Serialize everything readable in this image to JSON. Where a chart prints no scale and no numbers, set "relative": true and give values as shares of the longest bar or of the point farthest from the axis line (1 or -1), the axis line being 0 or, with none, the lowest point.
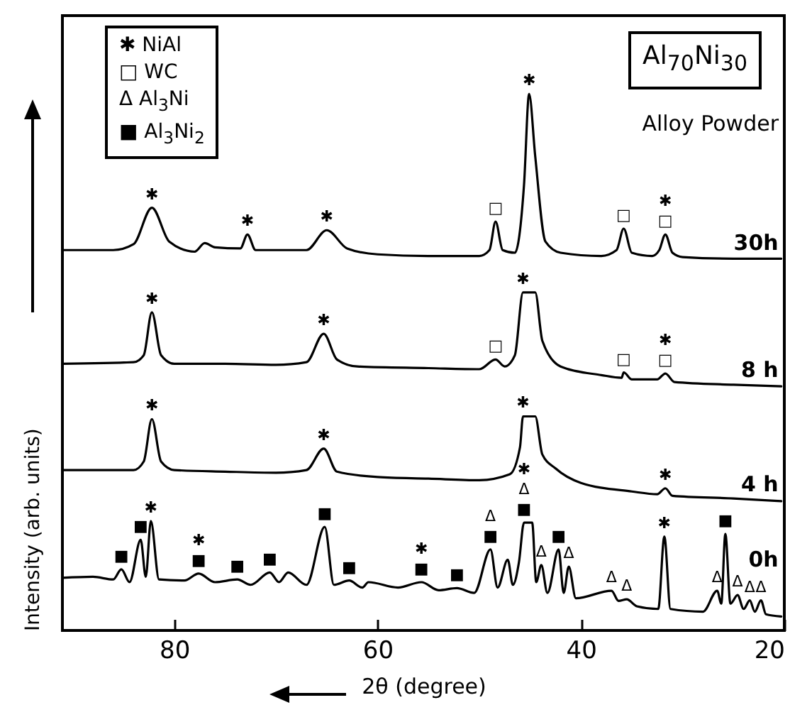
{
  "chart_data": {
    "type": "line",
    "relative": true,
    "xlabel": "2θ (degree)",
    "ylabel": "Intensity (arb. units)",
    "xlim": [
      91,
      20
    ],
    "xticks": [
      80,
      60,
      40,
      20
    ],
    "grid": false,
    "legend": false,
    "line_style": "solid",
    "series": [
      {
        "name": "30h",
        "color": "#000000",
        "x": [
          91,
          86,
          84,
          82.2,
          80.5,
          78,
          77,
          76,
          73.5,
          72.8,
          72,
          67,
          65,
          63,
          60,
          55,
          50,
          49,
          48.4,
          47.7,
          46.5,
          45.6,
          45.1,
          44.5,
          43.5,
          42,
          38,
          36.5,
          35.8,
          35,
          33,
          32.3,
          31.7,
          31,
          30,
          25,
          20.3
        ],
        "values": [
          0.709,
          0.709,
          0.72,
          0.788,
          0.725,
          0.706,
          0.722,
          0.714,
          0.712,
          0.738,
          0.709,
          0.709,
          0.746,
          0.712,
          0.701,
          0.698,
          0.698,
          0.709,
          0.762,
          0.709,
          0.704,
          0.831,
          1.0,
          0.884,
          0.725,
          0.704,
          0.698,
          0.709,
          0.749,
          0.704,
          0.698,
          0.709,
          0.738,
          0.704,
          0.696,
          0.693,
          0.693
        ]
      },
      {
        "name": "8 h",
        "color": "#000000",
        "x": [
          91,
          84,
          83,
          82.2,
          81.3,
          80,
          75,
          70,
          67,
          65.3,
          64,
          62,
          55,
          50,
          48.4,
          47.5,
          46.5,
          45.7,
          44.5,
          43.8,
          42,
          38,
          36,
          35.8,
          35,
          32.5,
          31.7,
          30.8,
          25,
          20.3
        ],
        "values": [
          0.497,
          0.5,
          0.513,
          0.593,
          0.513,
          0.497,
          0.497,
          0.495,
          0.5,
          0.553,
          0.505,
          0.492,
          0.489,
          0.487,
          0.505,
          0.492,
          0.513,
          0.63,
          0.63,
          0.54,
          0.492,
          0.476,
          0.471,
          0.481,
          0.468,
          0.468,
          0.479,
          0.463,
          0.458,
          0.455
        ]
      },
      {
        "name": "4 h",
        "color": "#000000",
        "x": [
          91,
          84,
          83,
          82.2,
          81.3,
          80,
          75,
          70,
          67,
          65.3,
          64,
          60,
          55,
          50,
          47,
          46,
          45.7,
          44.5,
          43.8,
          42.5,
          40,
          35,
          32.5,
          31.7,
          31,
          25,
          20.3
        ],
        "values": [
          0.299,
          0.299,
          0.315,
          0.394,
          0.315,
          0.299,
          0.296,
          0.294,
          0.299,
          0.339,
          0.296,
          0.286,
          0.283,
          0.28,
          0.291,
          0.341,
          0.399,
          0.399,
          0.328,
          0.302,
          0.275,
          0.259,
          0.254,
          0.265,
          0.251,
          0.246,
          0.241
        ]
      },
      {
        "name": "0h",
        "color": "#000000",
        "x": [
          91,
          88,
          86,
          85.2,
          84.4,
          83.3,
          82.8,
          82.3,
          81.5,
          79,
          77.6,
          76,
          73.8,
          72.5,
          70.6,
          69.7,
          68.8,
          67,
          65.2,
          64.3,
          62.8,
          61.5,
          60.9,
          58,
          55.7,
          54,
          52.2,
          50.5,
          48.9,
          48.2,
          47.2,
          46.7,
          46.1,
          45.6,
          44.8,
          44.4,
          43.9,
          43.3,
          42.2,
          41.7,
          41.2,
          40.5,
          37,
          36.3,
          35.5,
          34.5,
          32.4,
          31.8,
          31.2,
          28,
          26.6,
          26.2,
          25.8,
          25.3,
          24.6,
          24,
          23.4,
          22.9,
          22.3,
          21.8,
          20.3
        ],
        "values": [
          0.098,
          0.1,
          0.095,
          0.114,
          0.09,
          0.169,
          0.1,
          0.204,
          0.095,
          0.093,
          0.106,
          0.09,
          0.095,
          0.085,
          0.108,
          0.09,
          0.108,
          0.085,
          0.193,
          0.085,
          0.093,
          0.08,
          0.09,
          0.08,
          0.09,
          0.075,
          0.079,
          0.07,
          0.151,
          0.08,
          0.132,
          0.085,
          0.127,
          0.201,
          0.201,
          0.09,
          0.122,
          0.07,
          0.151,
          0.07,
          0.119,
          0.06,
          0.074,
          0.055,
          0.058,
          0.045,
          0.04,
          0.175,
          0.04,
          0.035,
          0.074,
          0.05,
          0.18,
          0.05,
          0.066,
          0.04,
          0.056,
          0.035,
          0.056,
          0.03,
          0.026
        ]
      }
    ],
    "annotations": [
      "Al$_{70}$Ni$_{30}$",
      "Alloy Powder",
      "✱ NiAl",
      "□ WC",
      "Δ Al$_{3}$Ni",
      "■ Al$_{3}$Ni$_{2}$",
      {
        "text": "✱",
        "x": 82.2,
        "y": 0.788
      },
      {
        "text": "✱",
        "x": 72.8,
        "y": 0.738
      },
      {
        "text": "✱",
        "x": 65,
        "y": 0.746
      },
      {
        "text": "□",
        "x": 48.4,
        "y": 0.762
      },
      {
        "text": "✱",
        "x": 45.1,
        "y": 1.0
      },
      {
        "text": "□",
        "x": 35.8,
        "y": 0.749
      },
      {
        "text": "□",
        "x": 31.7,
        "y": 0.738
      },
      {
        "text": "✱",
        "x": 31.7,
        "y": 0.738
      },
      {
        "text": "✱",
        "x": 82.2,
        "y": 0.593
      },
      {
        "text": "✱",
        "x": 65.3,
        "y": 0.553
      },
      {
        "text": "□",
        "x": 48.4,
        "y": 0.505
      },
      {
        "text": "✱",
        "x": 45.7,
        "y": 0.63
      },
      {
        "text": "□",
        "x": 35.8,
        "y": 0.481
      },
      {
        "text": "□",
        "x": 31.7,
        "y": 0.479
      },
      {
        "text": "✱",
        "x": 31.7,
        "y": 0.479
      },
      {
        "text": "✱",
        "x": 82.2,
        "y": 0.394
      },
      {
        "text": "✱",
        "x": 65.3,
        "y": 0.339
      },
      {
        "text": "✱",
        "x": 45.7,
        "y": 0.399
      },
      {
        "text": "✱",
        "x": 31.7,
        "y": 0.265
      },
      {
        "text": "■",
        "x": 85.2,
        "y": 0.114
      },
      {
        "text": "■",
        "x": 83.3,
        "y": 0.169
      },
      {
        "text": "✱",
        "x": 82.3,
        "y": 0.204
      },
      {
        "text": "■",
        "x": 77.6,
        "y": 0.106
      },
      {
        "text": "✱",
        "x": 77.6,
        "y": 0.106
      },
      {
        "text": "■",
        "x": 73.8,
        "y": 0.095
      },
      {
        "text": "■",
        "x": 70.6,
        "y": 0.108
      },
      {
        "text": "■",
        "x": 65.2,
        "y": 0.193
      },
      {
        "text": "■",
        "x": 62.8,
        "y": 0.093
      },
      {
        "text": "■",
        "x": 55.7,
        "y": 0.09
      },
      {
        "text": "✱",
        "x": 55.7,
        "y": 0.09
      },
      {
        "text": "■",
        "x": 52.2,
        "y": 0.079
      },
      {
        "text": "■",
        "x": 48.9,
        "y": 0.151
      },
      {
        "text": "Δ",
        "x": 48.9,
        "y": 0.151
      },
      {
        "text": "■",
        "x": 45.6,
        "y": 0.201
      },
      {
        "text": "Δ",
        "x": 45.6,
        "y": 0.201
      },
      {
        "text": "✱",
        "x": 45.6,
        "y": 0.201
      },
      {
        "text": "Δ",
        "x": 43.9,
        "y": 0.122
      },
      {
        "text": "■",
        "x": 42.2,
        "y": 0.151
      },
      {
        "text": "Δ",
        "x": 41.2,
        "y": 0.119
      },
      {
        "text": "Δ",
        "x": 37,
        "y": 0.074
      },
      {
        "text": "Δ",
        "x": 35.5,
        "y": 0.058
      },
      {
        "text": "✱",
        "x": 31.8,
        "y": 0.175
      },
      {
        "text": "Δ",
        "x": 26.6,
        "y": 0.074
      },
      {
        "text": "■",
        "x": 25.8,
        "y": 0.18
      },
      {
        "text": "Δ",
        "x": 24.6,
        "y": 0.066
      },
      {
        "text": "Δ",
        "x": 23.4,
        "y": 0.056
      },
      {
        "text": "Δ",
        "x": 22.3,
        "y": 0.056
      }
    ]
  }
}
